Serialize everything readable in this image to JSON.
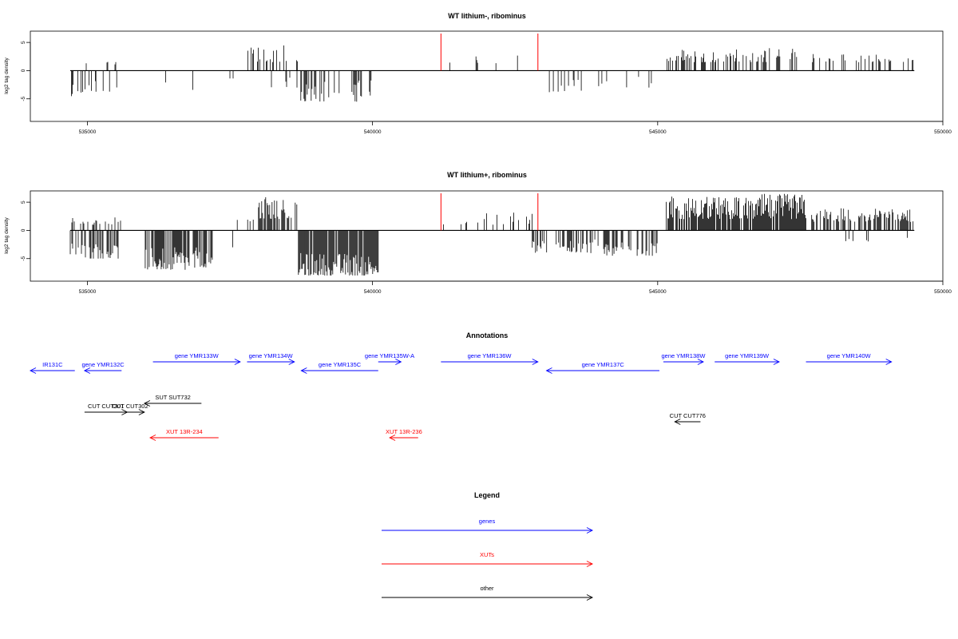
{
  "colors": {
    "gene": "#0000ff",
    "xut": "#ff0000",
    "other": "#000000",
    "marker": "#ff0000"
  },
  "chart_data": [
    {
      "type": "bar",
      "title": "WT lithium-, ribominus",
      "ylabel": "log2 tag density",
      "xlim": [
        534000,
        550000
      ],
      "ylim": [
        -9,
        7
      ],
      "xticks": [
        "535000",
        "540000",
        "545000",
        "550000"
      ],
      "yticks": [
        "5",
        "0",
        "-5"
      ],
      "markers": [
        541200,
        542900
      ],
      "note": "per-position log2 tag density; positive = + strand, negative = - strand",
      "segments": [
        {
          "x0": 534700,
          "x1": 535500,
          "ymin": 1,
          "ymax": 2,
          "dens": 0.15
        },
        {
          "x0": 534720,
          "x1": 535150,
          "ymin": -5,
          "ymax": -1.5,
          "dens": 0.35
        },
        {
          "x0": 535150,
          "x1": 535600,
          "ymin": -4,
          "ymax": -1.5,
          "dens": 0.18
        },
        {
          "x0": 536150,
          "x1": 536500,
          "ymin": -3,
          "ymax": -1,
          "dens": 0.08
        },
        {
          "x0": 536500,
          "x1": 537100,
          "ymin": -3.5,
          "ymax": -1,
          "dens": 0.07
        },
        {
          "x0": 537500,
          "x1": 537700,
          "ymin": -1.5,
          "ymax": -1,
          "dens": 0.05
        },
        {
          "x0": 537800,
          "x1": 538700,
          "ymin": 1.5,
          "ymax": 4.5,
          "dens": 0.32
        },
        {
          "x0": 538200,
          "x1": 538700,
          "ymin": -3,
          "ymax": -1,
          "dens": 0.12
        },
        {
          "x0": 538700,
          "x1": 540000,
          "ymin": -5.5,
          "ymax": -1.5,
          "dens": 0.3
        },
        {
          "x0": 540700,
          "x1": 540750,
          "ymin": -2.5,
          "ymax": -2,
          "dens": 0.05
        },
        {
          "x0": 541300,
          "x1": 541450,
          "ymin": 1,
          "ymax": 3,
          "dens": 0.04
        },
        {
          "x0": 541800,
          "x1": 542600,
          "ymin": 1,
          "ymax": 3,
          "dens": 0.05
        },
        {
          "x0": 543100,
          "x1": 543700,
          "ymin": -4,
          "ymax": -1.5,
          "dens": 0.3
        },
        {
          "x0": 543700,
          "x1": 545000,
          "ymin": -3,
          "ymax": -1,
          "dens": 0.1
        },
        {
          "x0": 545150,
          "x1": 546400,
          "ymin": 1.5,
          "ymax": 4,
          "dens": 0.35
        },
        {
          "x0": 546400,
          "x1": 547500,
          "ymin": 1.5,
          "ymax": 4,
          "dens": 0.3
        },
        {
          "x0": 547700,
          "x1": 549500,
          "ymin": 1.5,
          "ymax": 3,
          "dens": 0.25
        },
        {
          "x0": 549000,
          "x1": 549100,
          "ymin": -3,
          "ymax": -2,
          "dens": 0.05
        }
      ]
    },
    {
      "type": "bar",
      "title": "WT lithium+, ribominus",
      "ylabel": "log2 tag density",
      "xlim": [
        534000,
        550000
      ],
      "ylim": [
        -9,
        7
      ],
      "xticks": [
        "535000",
        "540000",
        "545000",
        "550000"
      ],
      "yticks": [
        "5",
        "0",
        "-5"
      ],
      "markers": [
        541200,
        542900
      ],
      "note": "per-position log2 tag density; positive = + strand, negative = - strand",
      "segments": [
        {
          "x0": 534700,
          "x1": 535600,
          "ymin": 1,
          "ymax": 2.5,
          "dens": 0.2
        },
        {
          "x0": 534700,
          "x1": 535600,
          "ymin": -5,
          "ymax": -2,
          "dens": 0.45
        },
        {
          "x0": 536000,
          "x1": 537200,
          "ymin": -7,
          "ymax": -3,
          "dens": 0.75
        },
        {
          "x0": 537200,
          "x1": 537600,
          "ymin": -3,
          "ymax": -1,
          "dens": 0.15
        },
        {
          "x0": 537600,
          "x1": 538000,
          "ymin": 0.8,
          "ymax": 2.5,
          "dens": 0.2
        },
        {
          "x0": 538000,
          "x1": 538700,
          "ymin": 2,
          "ymax": 6,
          "dens": 0.5
        },
        {
          "x0": 538700,
          "x1": 540100,
          "ymin": -8,
          "ymax": -4,
          "dens": 0.9
        },
        {
          "x0": 540600,
          "x1": 540800,
          "ymin": -2,
          "ymax": 1,
          "dens": 0.05
        },
        {
          "x0": 541200,
          "x1": 542800,
          "ymin": 1,
          "ymax": 4,
          "dens": 0.2
        },
        {
          "x0": 542800,
          "x1": 543800,
          "ymin": -4,
          "ymax": -1.5,
          "dens": 0.4
        },
        {
          "x0": 543800,
          "x1": 545000,
          "ymin": -4.5,
          "ymax": -1.5,
          "dens": 0.45
        },
        {
          "x0": 545150,
          "x1": 546800,
          "ymin": 2,
          "ymax": 6,
          "dens": 0.85
        },
        {
          "x0": 546800,
          "x1": 547600,
          "ymin": 2,
          "ymax": 6.5,
          "dens": 0.9
        },
        {
          "x0": 547700,
          "x1": 549500,
          "ymin": 1.5,
          "ymax": 4,
          "dens": 0.6
        },
        {
          "x0": 548200,
          "x1": 549500,
          "ymin": -2,
          "ymax": -1,
          "dens": 0.05
        }
      ]
    }
  ],
  "annotations": {
    "title": "Annotations",
    "features": [
      {
        "label": "IR131C",
        "type": "gene",
        "strand": "-",
        "start": 534000,
        "end": 534780,
        "row": 1
      },
      {
        "label": "gene YMR132C",
        "type": "gene",
        "strand": "-",
        "start": 534950,
        "end": 535600,
        "row": 1
      },
      {
        "label": "gene YMR133W",
        "type": "gene",
        "strand": "+",
        "start": 536150,
        "end": 537680,
        "row": 0
      },
      {
        "label": "gene YMR134W",
        "type": "gene",
        "strand": "+",
        "start": 537800,
        "end": 538630,
        "row": 0
      },
      {
        "label": "gene YMR135C",
        "type": "gene",
        "strand": "-",
        "start": 538750,
        "end": 540100,
        "row": 1
      },
      {
        "label": "gene YMR135W-A",
        "type": "gene",
        "strand": "+",
        "start": 540100,
        "end": 540500,
        "row": 0
      },
      {
        "label": "gene YMR136W",
        "type": "gene",
        "strand": "+",
        "start": 541200,
        "end": 542900,
        "row": 0
      },
      {
        "label": "gene YMR137C",
        "type": "gene",
        "strand": "-",
        "start": 543050,
        "end": 545030,
        "row": 1
      },
      {
        "label": "gene YMR138W",
        "type": "gene",
        "strand": "+",
        "start": 545100,
        "end": 545800,
        "row": 0
      },
      {
        "label": "gene YMR139W",
        "type": "gene",
        "strand": "+",
        "start": 546000,
        "end": 547130,
        "row": 0
      },
      {
        "label": "gene YMR140W",
        "type": "gene",
        "strand": "+",
        "start": 547600,
        "end": 549100,
        "row": 0
      },
      {
        "label": "CUT CUT301",
        "type": "other",
        "strand": "+",
        "start": 534950,
        "end": 535700,
        "row": 4
      },
      {
        "label": "CUT CUT302",
        "type": "other",
        "strand": "+",
        "start": 535500,
        "end": 536000,
        "row": 4
      },
      {
        "label": "SUT SUT732",
        "type": "other",
        "strand": "-",
        "start": 536000,
        "end": 537000,
        "row": 3
      },
      {
        "label": "CUT CUT776",
        "type": "other",
        "strand": "-",
        "start": 545300,
        "end": 545750,
        "row": 5
      },
      {
        "label": "XUT 13R-234",
        "type": "xut",
        "strand": "-",
        "start": 536100,
        "end": 537300,
        "row": 6
      },
      {
        "label": "XUT 13R-236",
        "type": "xut",
        "strand": "-",
        "start": 540300,
        "end": 540800,
        "row": 6
      }
    ]
  },
  "legend": {
    "title": "Legend",
    "items": [
      {
        "label": "genes",
        "type": "gene"
      },
      {
        "label": "XUTs",
        "type": "xut"
      },
      {
        "label": "other",
        "type": "other"
      }
    ]
  }
}
